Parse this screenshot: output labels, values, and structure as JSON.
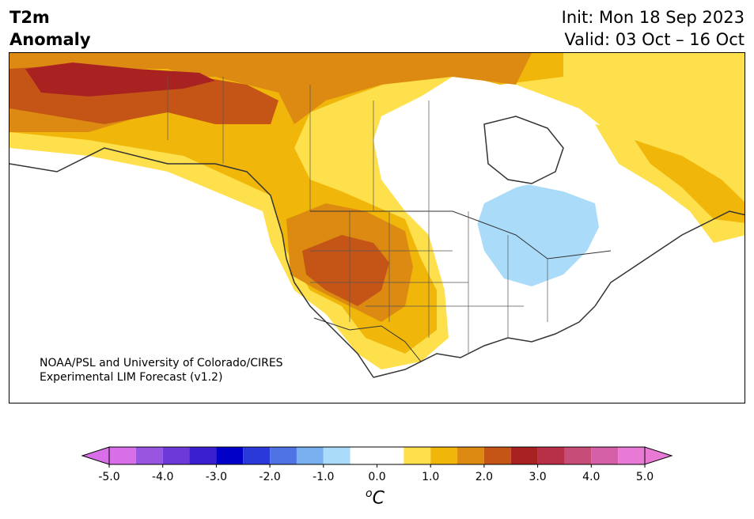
{
  "header": {
    "title_line1": "T2m",
    "title_line2": "Anomaly",
    "init": "Init: Mon 18 Sep 2023",
    "valid": "Valid: 03 Oct – 16 Oct"
  },
  "credit": {
    "line1": "NOAA/PSL and University of Colorado/CIRES",
    "line2": "Experimental LIM Forecast (v1.2)"
  },
  "map": {
    "region": "North America",
    "variable": "2m temperature anomaly"
  },
  "colorbar": {
    "unit": "oC",
    "ticks": [
      "-5.0",
      "-4.0",
      "-3.0",
      "-2.0",
      "-1.0",
      "0.0",
      "1.0",
      "2.0",
      "3.0",
      "4.0",
      "5.0"
    ],
    "low_extend_color": "#d96fe8",
    "high_extend_color": "#e87ad6",
    "bins": [
      {
        "range": [
          -5.0,
          -4.5
        ],
        "color": "#d96fe8"
      },
      {
        "range": [
          -4.5,
          -4.0
        ],
        "color": "#9a55e0"
      },
      {
        "range": [
          -4.0,
          -3.5
        ],
        "color": "#6b3ad8"
      },
      {
        "range": [
          -3.5,
          -3.0
        ],
        "color": "#3a1fd0"
      },
      {
        "range": [
          -3.0,
          -2.5
        ],
        "color": "#0000c8"
      },
      {
        "range": [
          -2.5,
          -2.0
        ],
        "color": "#2a3ad8"
      },
      {
        "range": [
          -2.0,
          -1.5
        ],
        "color": "#4e74e4"
      },
      {
        "range": [
          -1.5,
          -1.0
        ],
        "color": "#78b0f0"
      },
      {
        "range": [
          -1.0,
          -0.5
        ],
        "color": "#aadcfa"
      },
      {
        "range": [
          -0.5,
          0.5
        ],
        "color": "#ffffff"
      },
      {
        "range": [
          0.5,
          1.0
        ],
        "color": "#fde04c"
      },
      {
        "range": [
          1.0,
          1.5
        ],
        "color": "#f1b60a"
      },
      {
        "range": [
          1.5,
          2.0
        ],
        "color": "#dc8a12"
      },
      {
        "range": [
          2.0,
          2.5
        ],
        "color": "#c45516"
      },
      {
        "range": [
          2.5,
          3.0
        ],
        "color": "#a92222"
      },
      {
        "range": [
          3.0,
          3.5
        ],
        "color": "#b83048"
      },
      {
        "range": [
          3.5,
          4.0
        ],
        "color": "#c84c78"
      },
      {
        "range": [
          4.0,
          4.5
        ],
        "color": "#d660a8"
      },
      {
        "range": [
          4.5,
          5.0
        ],
        "color": "#e87ad6"
      }
    ]
  }
}
